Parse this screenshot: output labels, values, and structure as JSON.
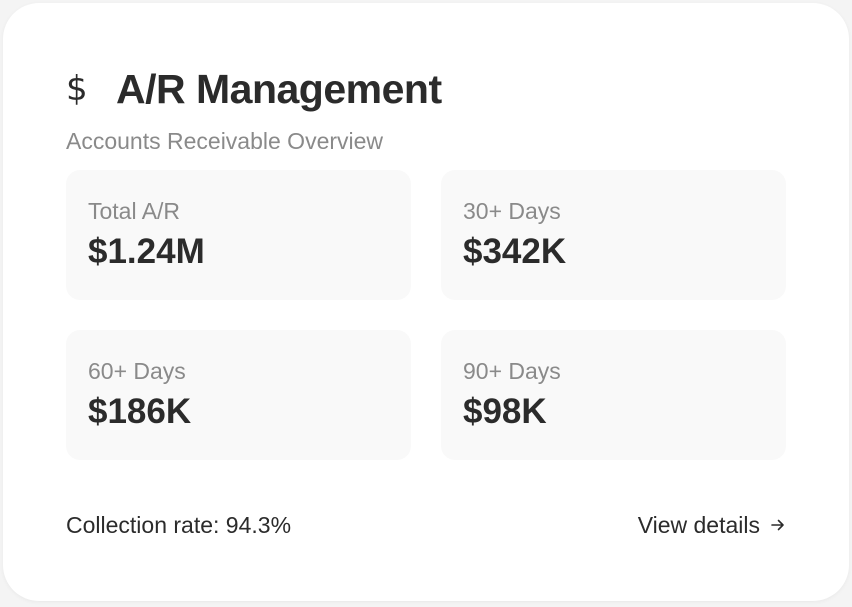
{
  "header": {
    "icon": "dollar-icon",
    "icon_glyph": "$",
    "title": "A/R Management",
    "subtitle": "Accounts Receivable Overview"
  },
  "stats": [
    {
      "label": "Total A/R",
      "value": "$1.24M"
    },
    {
      "label": "30+ Days",
      "value": "$342K"
    },
    {
      "label": "60+ Days",
      "value": "$186K"
    },
    {
      "label": "90+ Days",
      "value": "$98K"
    }
  ],
  "footer": {
    "collection_rate": "Collection rate: 94.3%",
    "view_details_label": "View details",
    "view_details_icon": "arrow-right-icon"
  },
  "colors": {
    "text_primary": "#2b2b2b",
    "text_muted": "#8a8a8a",
    "card_background": "#ffffff",
    "tile_background": "#f9f9f9"
  }
}
